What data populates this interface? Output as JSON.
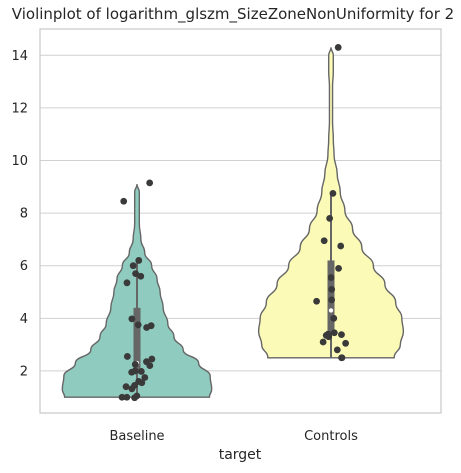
{
  "chart_data": {
    "type": "violin",
    "title": "Violinplot of logarithm_glszm_SizeZoneNonUniformity for 2",
    "xlabel": "target",
    "ylabel": "",
    "ylim": [
      0.4,
      15.0
    ],
    "yticks": [
      2,
      4,
      6,
      8,
      10,
      12,
      14
    ],
    "categories": [
      "Baseline",
      "Controls"
    ],
    "grid": true,
    "series": [
      {
        "category": "Baseline",
        "color": "#8fcbbf",
        "min": 1.0,
        "max": 9.1,
        "q1": 1.9,
        "median": 2.3,
        "q3": 4.4,
        "whisker_low": 1.0,
        "whisker_high": 6.2,
        "density_profile": [
          [
            1.0,
            0.94
          ],
          [
            1.3,
            0.97
          ],
          [
            1.8,
            0.95
          ],
          [
            2.3,
            0.8
          ],
          [
            2.8,
            0.6
          ],
          [
            3.3,
            0.48
          ],
          [
            3.8,
            0.4
          ],
          [
            4.4,
            0.34
          ],
          [
            5.0,
            0.3
          ],
          [
            5.5,
            0.26
          ],
          [
            6.0,
            0.19
          ],
          [
            6.5,
            0.1
          ],
          [
            7.0,
            0.05
          ],
          [
            7.6,
            0.03
          ],
          [
            8.2,
            0.03
          ],
          [
            8.8,
            0.03
          ],
          [
            9.1,
            0.0
          ]
        ],
        "points": [
          9.15,
          8.45,
          6.2,
          6.0,
          5.7,
          5.6,
          5.35,
          3.98,
          3.75,
          3.72,
          3.65,
          2.55,
          2.45,
          2.35,
          2.25,
          2.2,
          2.0,
          1.98,
          1.95,
          1.75,
          1.6,
          1.55,
          1.45,
          1.4,
          1.32,
          1.05,
          1.0,
          1.0,
          0.98
        ]
      },
      {
        "category": "Controls",
        "color": "#fbfbb7",
        "min": 2.5,
        "max": 14.3,
        "q1": 3.4,
        "median": 4.3,
        "q3": 6.2,
        "whisker_low": 2.5,
        "whisker_high": 8.7,
        "density_profile": [
          [
            2.5,
            0.82
          ],
          [
            3.0,
            0.9
          ],
          [
            3.5,
            0.94
          ],
          [
            4.0,
            0.92
          ],
          [
            4.6,
            0.84
          ],
          [
            5.3,
            0.7
          ],
          [
            6.0,
            0.55
          ],
          [
            6.7,
            0.4
          ],
          [
            7.4,
            0.28
          ],
          [
            8.1,
            0.18
          ],
          [
            8.8,
            0.12
          ],
          [
            9.5,
            0.08
          ],
          [
            10.2,
            0.04
          ],
          [
            10.8,
            0.03
          ],
          [
            11.5,
            0.02
          ],
          [
            12.2,
            0.02
          ],
          [
            12.8,
            0.02
          ],
          [
            13.4,
            0.03
          ],
          [
            14.0,
            0.03
          ],
          [
            14.3,
            0.0
          ]
        ],
        "points": [
          14.3,
          8.75,
          7.8,
          6.95,
          6.75,
          5.9,
          5.55,
          5.1,
          4.7,
          4.65,
          4.0,
          3.45,
          3.4,
          3.38,
          3.35,
          3.3,
          3.1,
          3.05,
          2.8,
          2.5,
          2.5
        ]
      }
    ]
  }
}
